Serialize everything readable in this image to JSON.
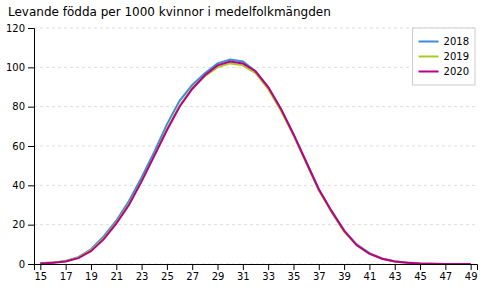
{
  "chart_data": {
    "type": "line",
    "title": "Levande födda per 1000 kvinnor i medelfolkmängden",
    "x": [
      15,
      16,
      17,
      18,
      19,
      20,
      21,
      22,
      23,
      24,
      25,
      26,
      27,
      28,
      29,
      30,
      31,
      32,
      33,
      34,
      35,
      36,
      37,
      38,
      39,
      40,
      41,
      42,
      43,
      44,
      45,
      46,
      47,
      48,
      49
    ],
    "series": [
      {
        "name": "2018",
        "color": "#3B8FD4",
        "values": [
          0.4,
          0.7,
          1.5,
          3.5,
          7.5,
          14.0,
          22.0,
          32.0,
          44.0,
          57.0,
          71.0,
          83.0,
          91.0,
          97.0,
          102.0,
          104.0,
          103.0,
          98.0,
          90.0,
          79.0,
          66.0,
          52.0,
          38.0,
          27.0,
          17.0,
          10.0,
          5.5,
          2.8,
          1.4,
          0.7,
          0.3,
          0.1,
          0.05,
          0.02,
          0.01
        ]
      },
      {
        "name": "2019",
        "color": "#AACC22",
        "values": [
          0.4,
          0.7,
          1.4,
          3.2,
          7.0,
          13.0,
          21.0,
          30.5,
          42.0,
          55.0,
          68.5,
          80.5,
          89.5,
          95.5,
          100.0,
          102.0,
          101.0,
          97.0,
          89.0,
          78.0,
          65.5,
          51.5,
          37.5,
          26.5,
          16.5,
          9.5,
          5.2,
          2.6,
          1.3,
          0.6,
          0.25,
          0.1,
          0.05,
          0.02,
          0.01
        ]
      },
      {
        "name": "2020",
        "color": "#BB0088",
        "values": [
          0.3,
          0.6,
          1.3,
          3.0,
          6.5,
          12.5,
          20.5,
          30.0,
          42.0,
          55.0,
          68.0,
          80.0,
          89.0,
          96.0,
          101.0,
          103.0,
          102.0,
          98.0,
          90.0,
          79.0,
          66.0,
          52.0,
          38.0,
          27.0,
          17.0,
          9.5,
          5.3,
          2.7,
          1.3,
          0.6,
          0.25,
          0.1,
          0.04,
          0.02,
          0.01
        ]
      }
    ],
    "xlim": [
      14.5,
      49.5
    ],
    "xticks": [
      15,
      17,
      19,
      21,
      23,
      25,
      27,
      29,
      31,
      33,
      35,
      37,
      39,
      41,
      43,
      45,
      47,
      49
    ],
    "ylim": [
      0,
      120
    ],
    "yticks": [
      0,
      20,
      40,
      60,
      80,
      100,
      120
    ],
    "grid": true,
    "legend": "upper right"
  }
}
